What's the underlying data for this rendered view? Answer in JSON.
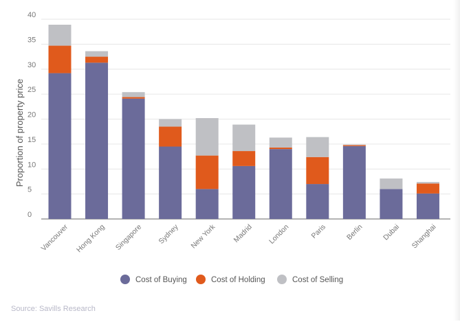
{
  "chart_data": {
    "type": "bar",
    "stacked": true,
    "title": "",
    "xlabel": "",
    "ylabel": "Proportion of property price",
    "ylim": [
      0,
      40
    ],
    "yticks": [
      0,
      5,
      10,
      15,
      20,
      25,
      30,
      35,
      40
    ],
    "grid": true,
    "legend_position": "bottom",
    "categories": [
      "Vancouver",
      "Hong Kong",
      "Singapore",
      "Sydney",
      "New York",
      "Madrid",
      "London",
      "Paris",
      "Berlin",
      "Dubai",
      "Shanghai"
    ],
    "series": [
      {
        "name": "Cost of Buying",
        "color": "#6b6b9a",
        "values": [
          29.2,
          31.3,
          24.1,
          14.5,
          6.0,
          10.6,
          14.0,
          7.0,
          14.6,
          6.0,
          5.1
        ]
      },
      {
        "name": "Cost of Holding",
        "color": "#e05a1c",
        "values": [
          5.5,
          1.2,
          0.3,
          4.0,
          6.7,
          3.0,
          0.3,
          5.4,
          0.2,
          0.0,
          2.0
        ]
      },
      {
        "name": "Cost of Selling",
        "color": "#bfc0c4",
        "values": [
          4.2,
          1.1,
          1.0,
          1.5,
          7.5,
          5.3,
          2.0,
          4.0,
          0.1,
          2.1,
          0.3
        ]
      }
    ]
  },
  "source": "Source: Savills Research"
}
